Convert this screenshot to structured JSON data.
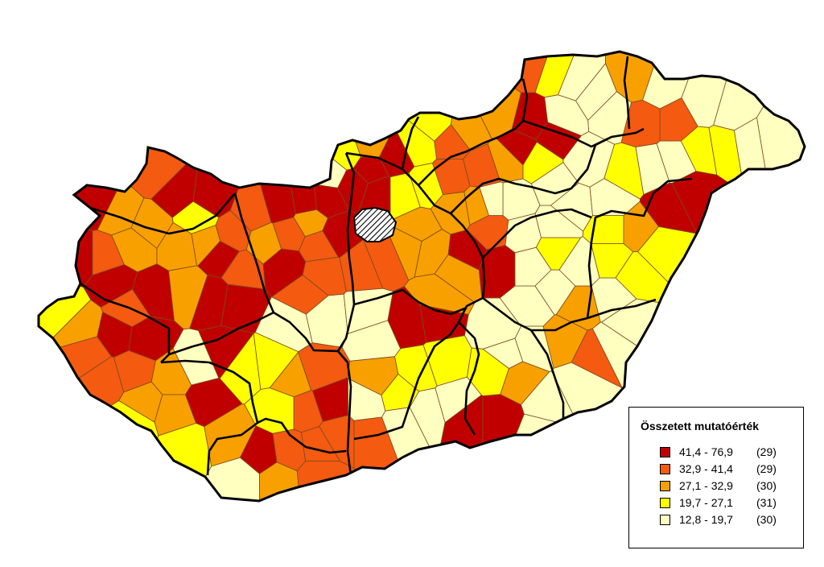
{
  "legend": {
    "title": "Összetett mutatóérték",
    "classes": [
      {
        "range": "41,4 - 76,9",
        "count": "(29)",
        "color": "#c00000"
      },
      {
        "range": "32,9 - 41,4",
        "count": "(29)",
        "color": "#f45a10"
      },
      {
        "range": "27,1 - 32,9",
        "count": "(30)",
        "color": "#f8a000"
      },
      {
        "range": "19,7 - 27,1",
        "count": "(31)",
        "color": "#ffff00"
      },
      {
        "range": "12,8 - 19,7",
        "count": "(30)",
        "color": "#ffffc0"
      }
    ]
  },
  "map": {
    "boundary_color": "#000000",
    "region_outline_color": "#7a4a20",
    "capital_fill": "hatched-white-black"
  }
}
